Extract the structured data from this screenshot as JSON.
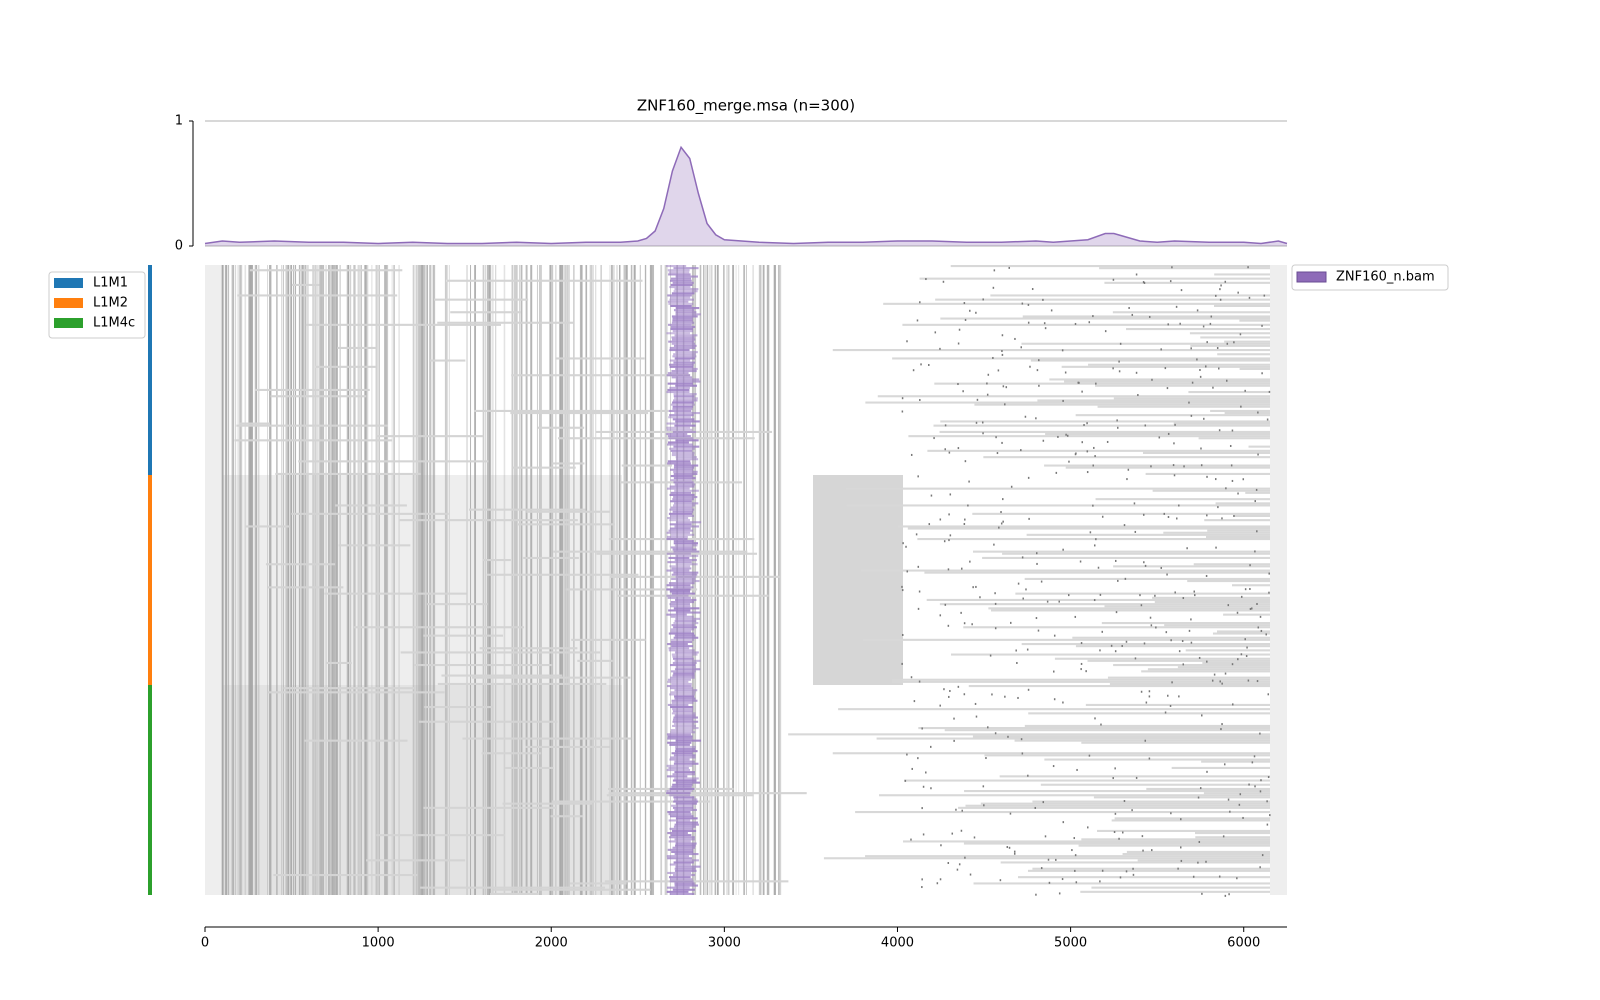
{
  "chart_data": {
    "type": "area",
    "title": "ZNF160_merge.msa (n=300)",
    "x": [
      0,
      100,
      200,
      400,
      600,
      800,
      1000,
      1200,
      1400,
      1600,
      1800,
      2000,
      2200,
      2400,
      2500,
      2550,
      2600,
      2650,
      2700,
      2750,
      2800,
      2850,
      2900,
      2950,
      3000,
      3100,
      3200,
      3400,
      3600,
      3800,
      4000,
      4200,
      4400,
      4600,
      4800,
      4900,
      5000,
      5100,
      5200,
      5250,
      5300,
      5400,
      5500,
      5600,
      5800,
      6000,
      6100,
      6200,
      6250
    ],
    "series": [
      {
        "name": "ZNF160_n.bam",
        "color": "#8e6bb8",
        "values": [
          0.02,
          0.04,
          0.03,
          0.04,
          0.03,
          0.03,
          0.02,
          0.03,
          0.02,
          0.02,
          0.03,
          0.02,
          0.03,
          0.03,
          0.04,
          0.06,
          0.12,
          0.3,
          0.6,
          0.79,
          0.7,
          0.42,
          0.18,
          0.09,
          0.05,
          0.04,
          0.03,
          0.02,
          0.03,
          0.03,
          0.04,
          0.04,
          0.03,
          0.03,
          0.04,
          0.03,
          0.04,
          0.05,
          0.1,
          0.1,
          0.08,
          0.04,
          0.03,
          0.04,
          0.03,
          0.03,
          0.02,
          0.04,
          0.02
        ]
      }
    ],
    "xlim": [
      0,
      6250
    ],
    "xticks": [
      0,
      1000,
      2000,
      3000,
      4000,
      5000,
      6000
    ],
    "ylim": [
      0,
      1
    ],
    "yticks": [
      0,
      1
    ],
    "grid": true,
    "groups": [
      {
        "name": "L1M1",
        "color": "#1f77b4",
        "count": 100
      },
      {
        "name": "L1M2",
        "color": "#ff7f0e",
        "count": 100
      },
      {
        "name": "L1M4c",
        "color": "#2ca02c",
        "count": 100
      }
    ]
  }
}
